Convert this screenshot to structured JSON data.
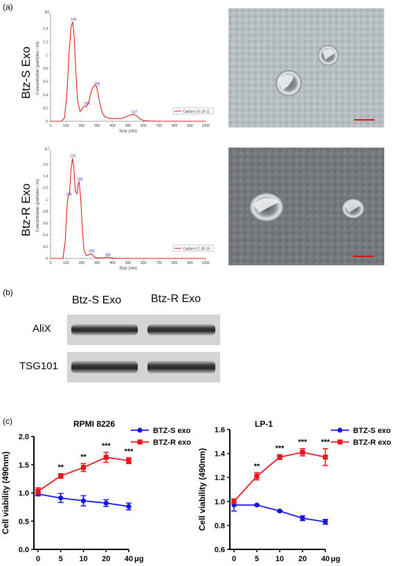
{
  "panels": {
    "a": "(a)",
    "b": "(b)",
    "c": "(c)"
  },
  "panel_a": {
    "rows": [
      {
        "label": "Btz-S Exo"
      },
      {
        "label": "Btz-R Exo"
      }
    ],
    "colors": {
      "line": "#e8181b",
      "peak_label": "#2a2ad8",
      "scale_bar": "#e01010"
    }
  },
  "panel_b": {
    "headers": [
      "Btz-S Exo",
      "Btz-R Exo"
    ],
    "bands": [
      "AliX",
      "TSG101"
    ]
  },
  "chart_data": [
    {
      "type": "line",
      "ylabel": "Concentration (particles / ml)",
      "xlabel": "Size (nm)",
      "multiplier": "E6",
      "xlim": [
        0,
        1000
      ],
      "ylim": [
        0,
        1.6
      ],
      "x_ticks": [
        0,
        100,
        200,
        300,
        400,
        500,
        600,
        700,
        800,
        900,
        1000
      ],
      "y_ticks": [
        0,
        0.2,
        0.4,
        0.6,
        0.8,
        1.0,
        1.2,
        1.4
      ],
      "legend": "Capture-15-16-11",
      "legend_position": "bottom-right",
      "peaks": [
        {
          "x": 143,
          "y": 1.5,
          "label": "143"
        },
        {
          "x": 230,
          "y": 0.23,
          "label": "230"
        },
        {
          "x": 296,
          "y": 0.53,
          "label": "296"
        },
        {
          "x": 537,
          "y": 0.1,
          "label": "537"
        }
      ],
      "series": [
        {
          "x": [
            0,
            70,
            90,
            105,
            120,
            132,
            143,
            152,
            162,
            175,
            190,
            205,
            218,
            232,
            248,
            262,
            276,
            288,
            296,
            308,
            320,
            335,
            350,
            370,
            390,
            410,
            430,
            450,
            470,
            490,
            510,
            525,
            537,
            550,
            565,
            580,
            600,
            630,
            680,
            750,
            900,
            1000
          ],
          "y": [
            0,
            0,
            0.05,
            0.4,
            1.05,
            1.42,
            1.5,
            1.3,
            0.8,
            0.3,
            0.15,
            0.19,
            0.23,
            0.22,
            0.3,
            0.45,
            0.52,
            0.55,
            0.53,
            0.4,
            0.25,
            0.12,
            0.07,
            0.05,
            0.04,
            0.04,
            0.04,
            0.04,
            0.05,
            0.07,
            0.09,
            0.1,
            0.1,
            0.09,
            0.06,
            0.03,
            0.01,
            0.005,
            0,
            0,
            0,
            0
          ]
        }
      ]
    },
    {
      "type": "line",
      "ylabel": "Concentration (particles / ml)",
      "xlabel": "Size (nm)",
      "multiplier": "E7",
      "xlim": [
        0,
        1000
      ],
      "ylim": [
        0,
        1.8
      ],
      "x_ticks": [
        0,
        100,
        200,
        300,
        400,
        500,
        600,
        700,
        800,
        900,
        1000
      ],
      "y_ticks": [
        0,
        0.2,
        0.4,
        0.6,
        0.8,
        1.0,
        1.2,
        1.4,
        1.6
      ],
      "legend": "Capture-17-30-24",
      "legend_position": "bottom-right",
      "peaks": [
        {
          "x": 114,
          "y": 1.05,
          "label": "114"
        },
        {
          "x": 141,
          "y": 1.7,
          "label": "141"
        },
        {
          "x": 185,
          "y": 1.3,
          "label": "185"
        },
        {
          "x": 259,
          "y": 0.08,
          "label": "259"
        },
        {
          "x": 365,
          "y": 0.02,
          "label": "365"
        }
      ],
      "series": [
        {
          "x": [
            0,
            80,
            95,
            108,
            114,
            122,
            132,
            141,
            150,
            160,
            170,
            180,
            185,
            195,
            205,
            215,
            230,
            245,
            259,
            270,
            285,
            300,
            330,
            350,
            365,
            380,
            400,
            450,
            500,
            600,
            800,
            1000
          ],
          "y": [
            0,
            0,
            0.3,
            0.95,
            1.05,
            1.1,
            1.5,
            1.7,
            1.55,
            1.15,
            1.1,
            1.28,
            1.3,
            1.0,
            0.5,
            0.15,
            0.05,
            0.06,
            0.08,
            0.06,
            0.02,
            0.01,
            0.01,
            0.015,
            0.02,
            0.015,
            0.005,
            0,
            0,
            0,
            0,
            0
          ]
        }
      ]
    },
    {
      "type": "line",
      "title": "RPMI 8226",
      "ylabel": "Cell viability (490nm)",
      "xlabel": "μg",
      "categories": [
        "0",
        "5",
        "10",
        "20",
        "40"
      ],
      "ylim": [
        0.0,
        2.0
      ],
      "y_ticks": [
        "0.0",
        "0.5",
        "1.0",
        "1.5",
        "2.0"
      ],
      "legend_position": "top-right",
      "series": [
        {
          "name": "BTZ-S exo",
          "color": "#1414e6",
          "marker": "circle",
          "values": [
            0.98,
            0.91,
            0.86,
            0.82,
            0.76
          ],
          "errors": [
            0.03,
            0.08,
            0.09,
            0.06,
            0.06
          ]
        },
        {
          "name": "BTZ-R exo",
          "color": "#e8141c",
          "marker": "square",
          "values": [
            1.03,
            1.3,
            1.45,
            1.63,
            1.57
          ],
          "errors": [
            0.06,
            0.04,
            0.07,
            0.09,
            0.05
          ]
        }
      ],
      "significance": [
        "",
        "**",
        "**",
        "***",
        "***"
      ]
    },
    {
      "type": "line",
      "title": "LP-1",
      "ylabel": "Cell viability (490nm)",
      "xlabel": "μg",
      "categories": [
        "0",
        "5",
        "10",
        "20",
        "40"
      ],
      "ylim": [
        0.6,
        1.6
      ],
      "y_ticks": [
        "0.6",
        "0.8",
        "1.0",
        "1.2",
        "1.4",
        "1.6"
      ],
      "legend_position": "top-right",
      "series": [
        {
          "name": "BTZ-S exo",
          "color": "#1414e6",
          "marker": "circle",
          "values": [
            0.97,
            0.97,
            0.92,
            0.86,
            0.83
          ],
          "errors": [
            0.05,
            0.005,
            0.005,
            0.02,
            0.02
          ]
        },
        {
          "name": "BTZ-R exo",
          "color": "#e8141c",
          "marker": "square",
          "values": [
            1.0,
            1.21,
            1.37,
            1.41,
            1.37
          ],
          "errors": [
            0.02,
            0.03,
            0.02,
            0.03,
            0.07
          ]
        }
      ],
      "significance": [
        "",
        "**",
        "***",
        "***",
        "***"
      ]
    }
  ]
}
